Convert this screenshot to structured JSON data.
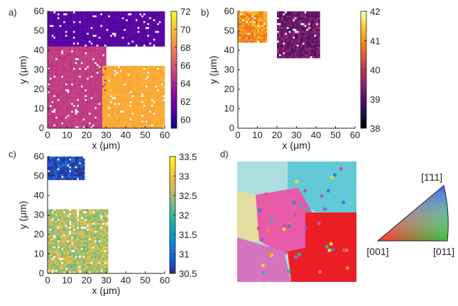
{
  "chart_data": [
    {
      "type": "heatmap",
      "panel_label": "a)",
      "xlabel": "x (μm)",
      "ylabel": "y (μm)",
      "xlim": [
        0,
        60
      ],
      "ylim": [
        0,
        60
      ],
      "xticks": [
        "0",
        "10",
        "20",
        "30",
        "40",
        "50",
        "60"
      ],
      "yticks": [
        "0",
        "10",
        "20",
        "30",
        "40",
        "50",
        "60"
      ],
      "colorbar": {
        "min": 59,
        "max": 72,
        "ticks": [
          "60",
          "62",
          "64",
          "66",
          "68",
          "70",
          "72"
        ],
        "colormap": "plasma"
      },
      "regions": [
        {
          "name": "top grain",
          "value": 61,
          "x": [
            0,
            60
          ],
          "y": [
            42,
            60
          ]
        },
        {
          "name": "left grain",
          "value": 65,
          "x": [
            0,
            30
          ],
          "y": [
            0,
            42
          ]
        },
        {
          "name": "right grain",
          "value": 69.5,
          "x": [
            28,
            60
          ],
          "y": [
            0,
            32
          ]
        }
      ]
    },
    {
      "type": "heatmap",
      "panel_label": "b)",
      "xlabel": "x (μm)",
      "ylabel": "y (μm)",
      "xlim": [
        0,
        60
      ],
      "ylim": [
        0,
        60
      ],
      "xticks": [
        "0",
        "10",
        "20",
        "30",
        "40",
        "50",
        "60"
      ],
      "yticks": [
        "0",
        "10",
        "20",
        "30",
        "40",
        "50",
        "60"
      ],
      "colorbar": {
        "min": 38,
        "max": 42,
        "ticks": [
          "38",
          "39",
          "40",
          "41",
          "42"
        ],
        "colormap": "inferno"
      },
      "regions": [
        {
          "name": "left patch",
          "value": 41,
          "x": [
            0,
            15
          ],
          "y": [
            44,
            60
          ]
        },
        {
          "name": "right patch",
          "value": 39.2,
          "x": [
            20,
            42
          ],
          "y": [
            36,
            60
          ]
        }
      ]
    },
    {
      "type": "heatmap",
      "panel_label": "c)",
      "xlabel": "x (μm)",
      "ylabel": "y (μm)",
      "xlim": [
        0,
        60
      ],
      "ylim": [
        0,
        60
      ],
      "xticks": [
        "0",
        "10",
        "20",
        "30",
        "40",
        "50",
        "60"
      ],
      "yticks": [
        "0",
        "10",
        "20",
        "30",
        "40",
        "50",
        "60"
      ],
      "colorbar": {
        "min": 30.5,
        "max": 33.5,
        "ticks": [
          "30.5",
          "31",
          "31.5",
          "32",
          "32.5",
          "33",
          "33.5"
        ],
        "colormap": "parula"
      },
      "regions": [
        {
          "name": "top patch",
          "value": 30.7,
          "x": [
            0,
            19
          ],
          "y": [
            48,
            60
          ]
        },
        {
          "name": "bottom patch",
          "value": 32.6,
          "x": [
            0,
            31
          ],
          "y": [
            0,
            33
          ]
        }
      ]
    },
    {
      "type": "ipf_map",
      "panel_label": "d)",
      "triangle_labels": {
        "top": "[1̄11]",
        "left": "[001]",
        "right": "[011]"
      },
      "grain_colors": [
        "#acdfe0",
        "#8ed4dc",
        "#62c9d6",
        "#e3dfa0",
        "#e85ba8",
        "#d675be",
        "#ec1f26"
      ]
    }
  ]
}
